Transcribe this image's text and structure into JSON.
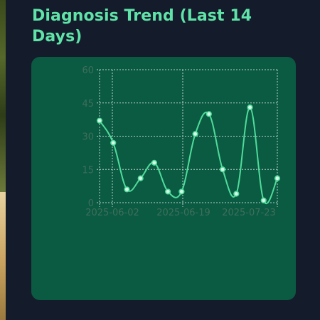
{
  "page": {
    "title": "Diagnosis Trend (Last 14 Days)"
  },
  "colors": {
    "background": "#141b2b",
    "card": "#0b5a42",
    "title": "#5fe3a8",
    "line": "#4fdc9a",
    "point_fill": "#d8f7e8",
    "grid": "#d6e6dc",
    "tick_text": "#3f6f5c"
  },
  "chart_data": {
    "type": "line",
    "title": "Diagnosis Trend (Last 14 Days)",
    "xlabel": "",
    "ylabel": "",
    "ylim": [
      0,
      60
    ],
    "yticks": [
      0,
      15,
      30,
      45,
      60
    ],
    "xticks": [
      "2025-06-02",
      "2025-06-19",
      "2025-07-23"
    ],
    "grid": true,
    "curve": "smooth",
    "points_count": 14,
    "values": [
      37,
      27,
      6,
      11,
      18,
      5,
      5,
      31,
      40,
      15,
      4,
      43,
      1,
      11
    ]
  }
}
